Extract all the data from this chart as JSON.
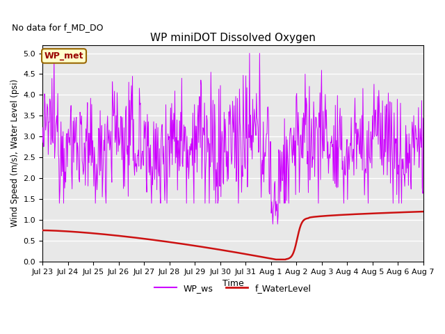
{
  "title": "WP miniDOT Dissolved Oxygen",
  "top_left_text": "No data for f_MD_DO",
  "ylabel": "Wind Speed (m/s), Water Level (psi)",
  "xlabel": "Time",
  "ylim": [
    0.0,
    5.2
  ],
  "yticks": [
    0.0,
    0.5,
    1.0,
    1.5,
    2.0,
    2.5,
    3.0,
    3.5,
    4.0,
    4.5,
    5.0
  ],
  "legend_labels": [
    "WP_ws",
    "f_WaterLevel"
  ],
  "ws_color": "#cc00ff",
  "wl_color": "#cc1111",
  "box_label": "WP_met",
  "box_facecolor": "#ffffcc",
  "box_edgecolor": "#996600",
  "box_text_color": "#990000",
  "background_color": "#e8e8e8",
  "xtick_labels": [
    "Jul 23",
    "Jul 24",
    "Jul 25",
    "Jul 26",
    "Jul 27",
    "Jul 28",
    "Jul 29",
    "Jul 30",
    "Jul 31",
    "Aug 1",
    "Aug 2",
    "Aug 3",
    "Aug 4",
    "Aug 5",
    "Aug 6",
    "Aug 7"
  ],
  "figsize": [
    6.4,
    4.8
  ],
  "dpi": 100
}
